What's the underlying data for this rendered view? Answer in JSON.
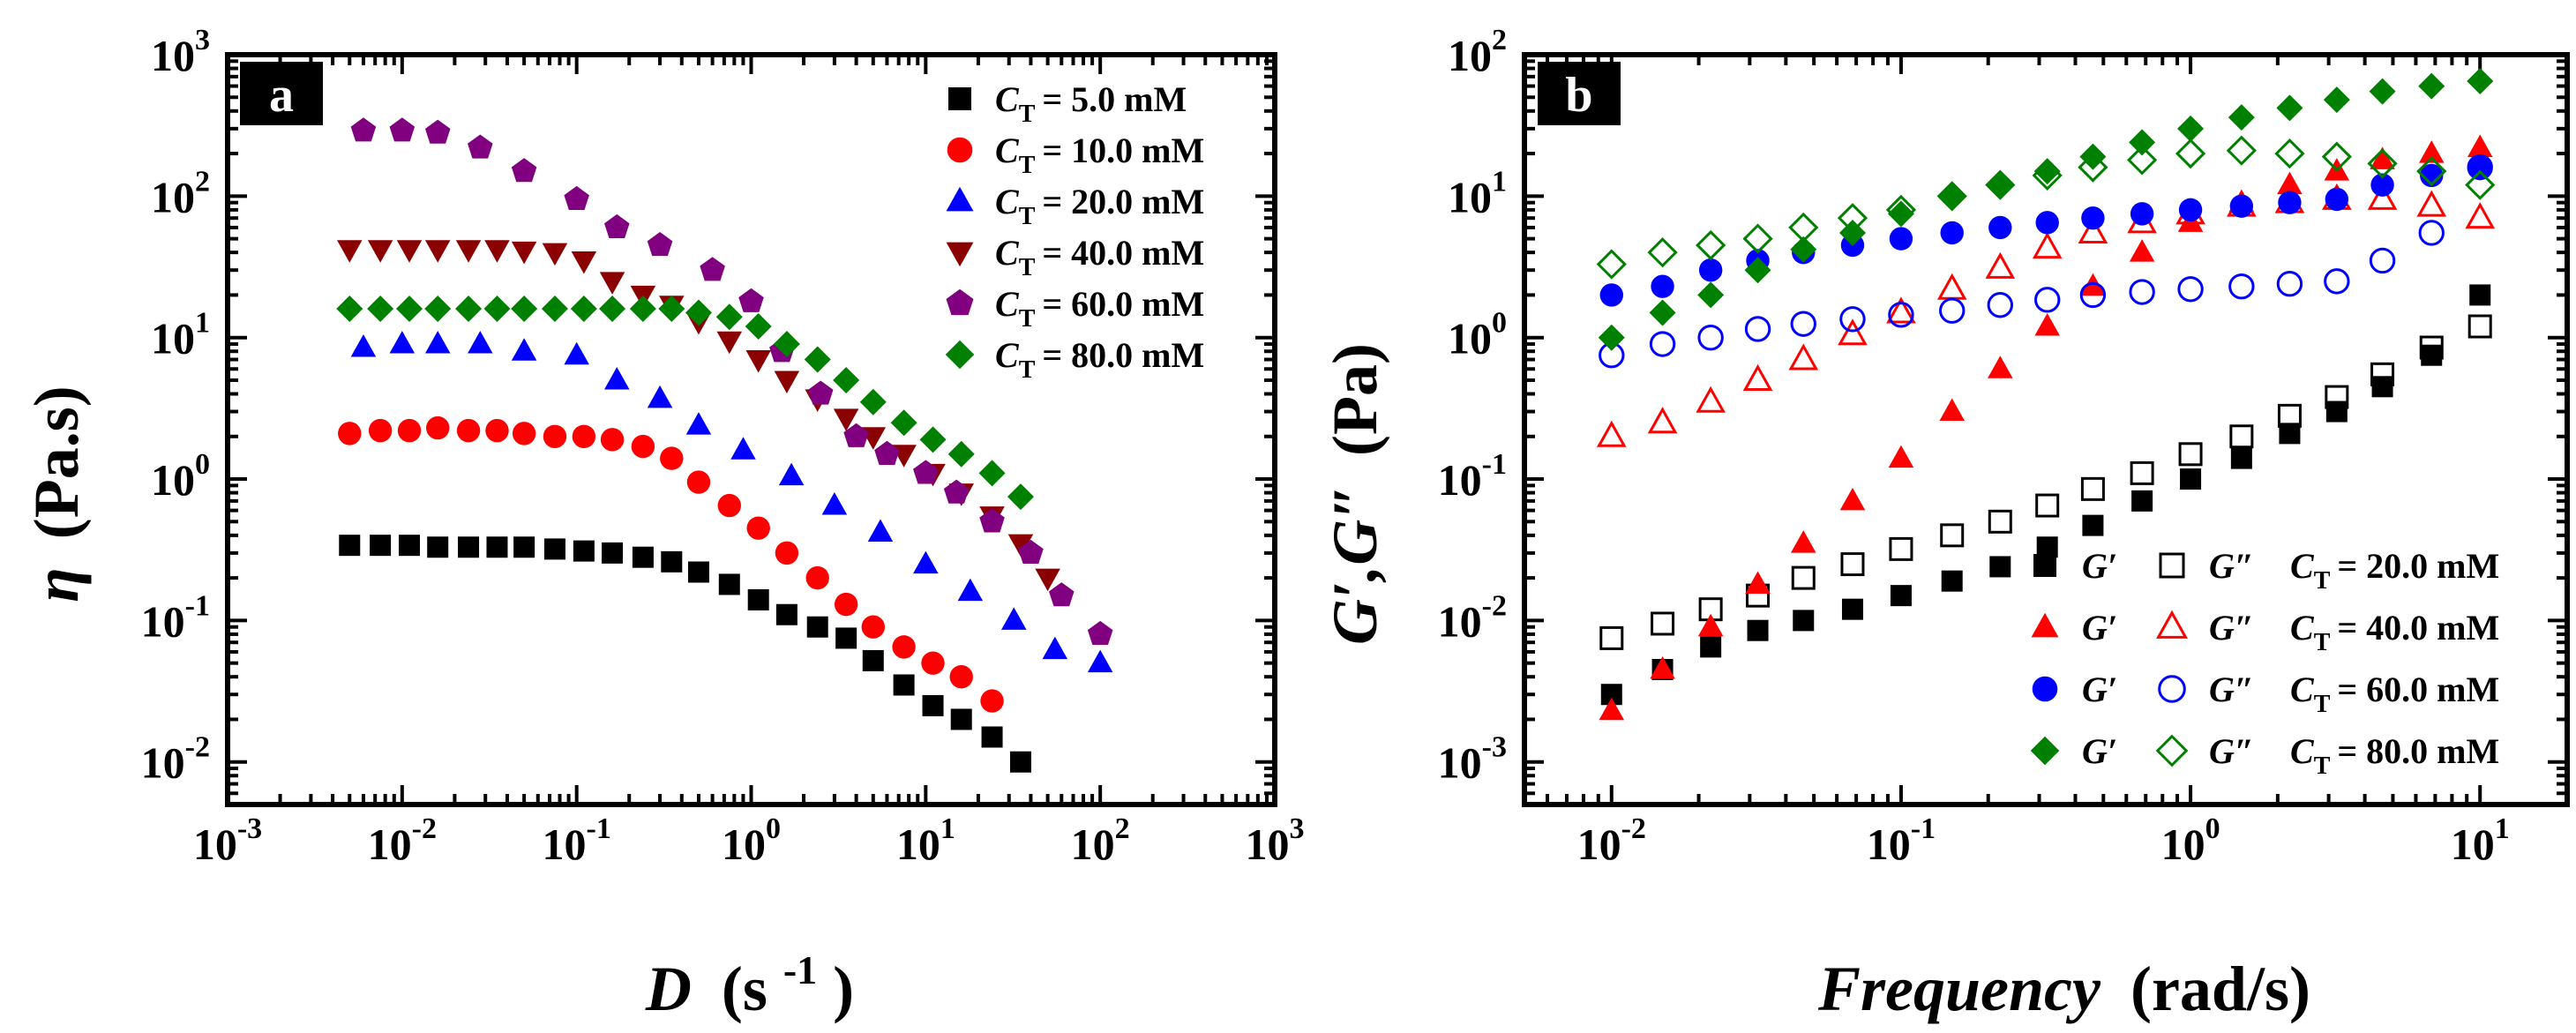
{
  "chart_data": [
    {
      "panel_letter": "a",
      "type": "scatter",
      "xlabel": {
        "symbol": "D",
        "unit_base": "(s",
        "unit_exp": "-1",
        "unit_close": ")"
      },
      "ylabel": {
        "symbol": "η",
        "unit": "(Pa.s)"
      },
      "x_scale": "log",
      "y_scale": "log",
      "xlim": [
        0.001,
        1000
      ],
      "ylim": [
        0.005,
        1000
      ],
      "x_ticks": [
        {
          "base": "10",
          "exp": "-3",
          "v": 0.001
        },
        {
          "base": "10",
          "exp": "-2",
          "v": 0.01
        },
        {
          "base": "10",
          "exp": "-1",
          "v": 0.1
        },
        {
          "base": "10",
          "exp": "0",
          "v": 1
        },
        {
          "base": "10",
          "exp": "1",
          "v": 10
        },
        {
          "base": "10",
          "exp": "2",
          "v": 100
        },
        {
          "base": "10",
          "exp": "3",
          "v": 1000
        }
      ],
      "y_ticks": [
        {
          "base": "10",
          "exp": "-2",
          "v": 0.01
        },
        {
          "base": "10",
          "exp": "-1",
          "v": 0.1
        },
        {
          "base": "10",
          "exp": "0",
          "v": 1
        },
        {
          "base": "10",
          "exp": "1",
          "v": 10
        },
        {
          "base": "10",
          "exp": "2",
          "v": 100
        },
        {
          "base": "10",
          "exp": "3",
          "v": 1000
        }
      ],
      "legend_position": "top-right",
      "series": [
        {
          "name": "C_T = 5.0 mM",
          "legend_sub": "T",
          "legend_value": "= 5.0 mM",
          "marker": "square",
          "color": "#000000",
          "x": [
            0.005,
            0.0075,
            0.011,
            0.016,
            0.024,
            0.035,
            0.05,
            0.075,
            0.11,
            0.16,
            0.24,
            0.35,
            0.5,
            0.75,
            1.1,
            1.6,
            2.4,
            3.5,
            5.0,
            7.5,
            11,
            16,
            24,
            35
          ],
          "y": [
            0.34,
            0.34,
            0.34,
            0.33,
            0.33,
            0.33,
            0.33,
            0.32,
            0.31,
            0.3,
            0.28,
            0.26,
            0.22,
            0.18,
            0.14,
            0.11,
            0.09,
            0.075,
            0.052,
            0.035,
            0.025,
            0.02,
            0.015,
            0.01
          ]
        },
        {
          "name": "C_T = 10.0 mM",
          "legend_sub": "T",
          "legend_value": "= 10.0 mM",
          "marker": "circle",
          "color": "#ff0000",
          "x": [
            0.005,
            0.0075,
            0.011,
            0.016,
            0.024,
            0.035,
            0.05,
            0.075,
            0.11,
            0.16,
            0.24,
            0.35,
            0.5,
            0.75,
            1.1,
            1.6,
            2.4,
            3.5,
            5.0,
            7.5,
            11,
            16,
            24
          ],
          "y": [
            2.1,
            2.2,
            2.2,
            2.3,
            2.2,
            2.2,
            2.1,
            2.0,
            2.0,
            1.9,
            1.7,
            1.4,
            0.95,
            0.65,
            0.45,
            0.3,
            0.2,
            0.13,
            0.09,
            0.065,
            0.05,
            0.04,
            0.027
          ]
        },
        {
          "name": "C_T = 20.0 mM",
          "legend_sub": "T",
          "legend_value": "= 20.0 mM",
          "marker": "triangle",
          "color": "#0000ff",
          "x": [
            0.006,
            0.01,
            0.016,
            0.028,
            0.05,
            0.1,
            0.17,
            0.3,
            0.5,
            0.9,
            1.7,
            3,
            5.5,
            10,
            18,
            32,
            55,
            100
          ],
          "y": [
            8.5,
            9,
            9,
            9,
            8,
            7.5,
            5,
            3.7,
            2.4,
            1.6,
            1.05,
            0.65,
            0.42,
            0.25,
            0.16,
            0.1,
            0.062,
            0.05
          ]
        },
        {
          "name": "C_T = 40.0 mM",
          "legend_sub": "T",
          "legend_value": "= 40.0 mM",
          "marker": "triangle-down",
          "color": "#8b0000",
          "x": [
            0.005,
            0.0075,
            0.011,
            0.016,
            0.024,
            0.035,
            0.05,
            0.075,
            0.11,
            0.16,
            0.24,
            0.35,
            0.5,
            0.75,
            1.1,
            1.6,
            2.4,
            3.5,
            5.0,
            7.5,
            11,
            16,
            24,
            35,
            50
          ],
          "y": [
            42,
            42,
            42,
            42,
            42,
            42,
            41,
            40,
            35,
            25,
            20,
            17,
            13,
            9.5,
            7,
            5,
            3.7,
            2.7,
            2,
            1.5,
            1.1,
            0.8,
            0.55,
            0.35,
            0.2
          ]
        },
        {
          "name": "C_T = 60.0 mM",
          "legend_sub": "T",
          "legend_value": "= 60.0 mM",
          "marker": "pentagon",
          "color": "#800080",
          "x": [
            0.006,
            0.01,
            0.016,
            0.028,
            0.05,
            0.1,
            0.17,
            0.3,
            0.6,
            1.0,
            1.5,
            2.5,
            4,
            6,
            10,
            15,
            24,
            40,
            60,
            100
          ],
          "y": [
            290,
            290,
            280,
            220,
            150,
            95,
            60,
            45,
            30,
            18,
            8,
            4,
            2,
            1.5,
            1.1,
            0.8,
            0.5,
            0.3,
            0.15,
            0.08
          ]
        },
        {
          "name": "C_T = 80.0 mM",
          "legend_sub": "T",
          "legend_value": "= 80.0 mM",
          "marker": "diamond",
          "color": "#008000",
          "x": [
            0.005,
            0.0075,
            0.011,
            0.016,
            0.024,
            0.035,
            0.05,
            0.075,
            0.11,
            0.16,
            0.24,
            0.35,
            0.5,
            0.75,
            1.1,
            1.6,
            2.4,
            3.5,
            5.0,
            7.5,
            11,
            16,
            24,
            35
          ],
          "y": [
            16,
            16,
            16,
            16,
            16,
            16,
            16,
            16,
            16,
            16,
            16,
            16,
            15,
            14,
            12,
            9,
            7,
            5,
            3.5,
            2.5,
            1.9,
            1.5,
            1.1,
            0.75
          ]
        }
      ]
    },
    {
      "panel_letter": "b",
      "type": "scatter",
      "xlabel": {
        "italic_part": "Frequency",
        "unit": "(rad/s)"
      },
      "ylabel": {
        "text": "G′,G″",
        "unit": "(Pa)"
      },
      "x_scale": "log",
      "y_scale": "log",
      "xlim": [
        0.005,
        20
      ],
      "ylim": [
        0.0005,
        100
      ],
      "x_ticks": [
        {
          "base": "10",
          "exp": "-2",
          "v": 0.01
        },
        {
          "base": "10",
          "exp": "-1",
          "v": 0.1
        },
        {
          "base": "10",
          "exp": "0",
          "v": 1
        },
        {
          "base": "10",
          "exp": "1",
          "v": 10
        }
      ],
      "y_ticks": [
        {
          "base": "10",
          "exp": "-3",
          "v": 0.001
        },
        {
          "base": "10",
          "exp": "-2",
          "v": 0.01
        },
        {
          "base": "10",
          "exp": "-1",
          "v": 0.1
        },
        {
          "base": "10",
          "exp": "0",
          "v": 1
        },
        {
          "base": "10",
          "exp": "1",
          "v": 10
        },
        {
          "base": "10",
          "exp": "2",
          "v": 100
        }
      ],
      "legend_position": "bottom-right",
      "legend_labels": {
        "g1": "G′",
        "g2": "G″"
      },
      "x": [
        0.01,
        0.015,
        0.022,
        0.032,
        0.046,
        0.068,
        0.1,
        0.15,
        0.22,
        0.32,
        0.46,
        0.68,
        1.0,
        1.5,
        2.2,
        3.2,
        4.6,
        6.8,
        10
      ],
      "series": [
        {
          "name": "G′ C_T = 20.0 mM",
          "legend_sub": "T",
          "legend_value": "= 20.0 mM",
          "marker": "square",
          "fill": true,
          "color": "#000000",
          "y": [
            0.003,
            0.0045,
            0.0065,
            0.0085,
            0.01,
            0.012,
            0.015,
            0.019,
            0.024,
            0.033,
            0.047,
            0.07,
            0.1,
            0.14,
            0.21,
            0.3,
            0.45,
            0.75,
            2.0
          ]
        },
        {
          "name": "G″ C_T = 20.0 mM",
          "marker": "square",
          "fill": false,
          "color": "#000000",
          "y": [
            0.0075,
            0.0095,
            0.012,
            0.015,
            0.02,
            0.025,
            0.032,
            0.04,
            0.05,
            0.065,
            0.085,
            0.11,
            0.15,
            0.2,
            0.28,
            0.38,
            0.55,
            0.85,
            1.2
          ]
        },
        {
          "name": "G′ C_T = 40.0 mM",
          "legend_sub": "T",
          "legend_value": "= 40.0 mM",
          "marker": "triangle",
          "fill": true,
          "color": "#ff0000",
          "y": [
            0.0023,
            0.0045,
            0.009,
            0.018,
            0.035,
            0.07,
            0.14,
            0.3,
            0.6,
            1.2,
            2.3,
            4,
            6.5,
            9,
            12,
            15,
            18,
            20,
            22
          ]
        },
        {
          "name": "G″ C_T = 40.0 mM",
          "marker": "triangle",
          "fill": false,
          "color": "#ff0000",
          "y": [
            0.2,
            0.25,
            0.35,
            0.5,
            0.7,
            1.05,
            1.5,
            2.2,
            3.1,
            4.3,
            5.5,
            6.5,
            7.5,
            8.5,
            9,
            9.5,
            9.5,
            8.5,
            7
          ]
        },
        {
          "name": "G′ C_T = 60.0 mM",
          "legend_sub": "T",
          "legend_value": "= 60.0 mM",
          "marker": "circle",
          "fill": true,
          "color": "#0000ff",
          "y": [
            2.0,
            2.3,
            3.0,
            3.5,
            4.0,
            4.5,
            5.0,
            5.5,
            6.0,
            6.5,
            7.0,
            7.5,
            8.0,
            8.5,
            9.0,
            9.5,
            12,
            14,
            16
          ]
        },
        {
          "name": "G″ C_T = 60.0 mM",
          "marker": "circle",
          "fill": false,
          "color": "#0000ff",
          "y": [
            0.75,
            0.9,
            1.0,
            1.15,
            1.25,
            1.35,
            1.45,
            1.55,
            1.7,
            1.85,
            2.0,
            2.1,
            2.2,
            2.3,
            2.4,
            2.5,
            3.5,
            5.5,
            16
          ]
        },
        {
          "name": "G′ C_T = 80.0 mM",
          "legend_sub": "T",
          "legend_value": "= 80.0 mM",
          "marker": "diamond",
          "fill": true,
          "color": "#008000",
          "y": [
            1.0,
            1.5,
            2.0,
            3.0,
            4.2,
            5.5,
            7.5,
            10,
            12,
            15,
            19,
            24,
            30,
            36,
            42,
            48,
            55,
            60,
            65
          ]
        },
        {
          "name": "G″ C_T = 80.0 mM",
          "marker": "diamond",
          "fill": false,
          "color": "#008000",
          "y": [
            3.3,
            4.0,
            4.5,
            5.0,
            6.0,
            7.0,
            8.0,
            10,
            12,
            14,
            16,
            18,
            20,
            21,
            20,
            19,
            17,
            15,
            12
          ]
        }
      ]
    }
  ]
}
